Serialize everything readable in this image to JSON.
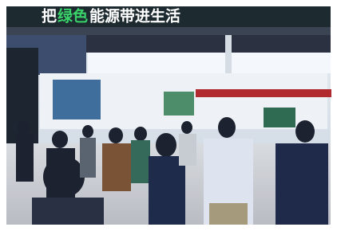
{
  "banner": {
    "segments": [
      "把",
      "绿色",
      "能源带进生活"
    ]
  }
}
